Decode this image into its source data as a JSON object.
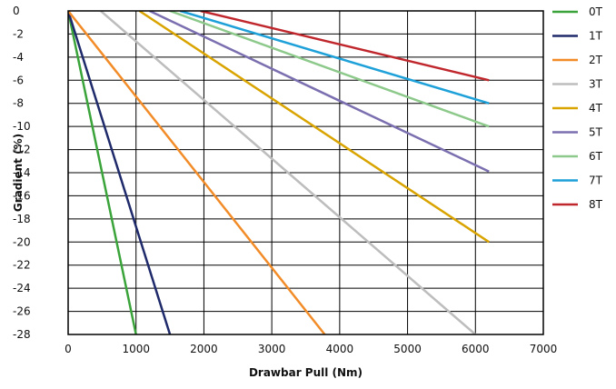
{
  "chart_data": {
    "type": "line",
    "title": "",
    "xlabel": "Drawbar Pull (Nm)",
    "ylabel": "Gradient (%)",
    "xlim": [
      0,
      7000
    ],
    "ylim": [
      -28,
      0
    ],
    "xticks": [
      0,
      1000,
      2000,
      3000,
      4000,
      5000,
      6000,
      7000
    ],
    "yticks": [
      0,
      -2,
      -4,
      -6,
      -8,
      -10,
      -12,
      -14,
      -16,
      -18,
      -20,
      -22,
      -24,
      -26,
      -28
    ],
    "grid": true,
    "legend_position": "right",
    "series": [
      {
        "name": "0T",
        "color": "#3aa33a",
        "points": [
          [
            0,
            0
          ],
          [
            1000,
            -28
          ]
        ]
      },
      {
        "name": "1T",
        "color": "#1f2a6b",
        "points": [
          [
            0,
            0
          ],
          [
            1500,
            -28
          ]
        ]
      },
      {
        "name": "2T",
        "color": "#f28c28",
        "points": [
          [
            0,
            0
          ],
          [
            3780,
            -28
          ]
        ]
      },
      {
        "name": "3T",
        "color": "#bdbdbd",
        "points": [
          [
            480,
            0
          ],
          [
            6000,
            -28
          ]
        ]
      },
      {
        "name": "4T",
        "color": "#d9a400",
        "points": [
          [
            1050,
            0
          ],
          [
            6200,
            -20
          ]
        ]
      },
      {
        "name": "5T",
        "color": "#7b6fb0",
        "points": [
          [
            1200,
            0
          ],
          [
            6200,
            -13.9
          ]
        ]
      },
      {
        "name": "6T",
        "color": "#8cc98a",
        "points": [
          [
            1500,
            0
          ],
          [
            6200,
            -10
          ]
        ]
      },
      {
        "name": "7T",
        "color": "#1ea0d8",
        "points": [
          [
            1650,
            0
          ],
          [
            6200,
            -8
          ]
        ]
      },
      {
        "name": "8T",
        "color": "#c0272d",
        "points": [
          [
            1950,
            0
          ],
          [
            6200,
            -6
          ]
        ]
      }
    ]
  }
}
